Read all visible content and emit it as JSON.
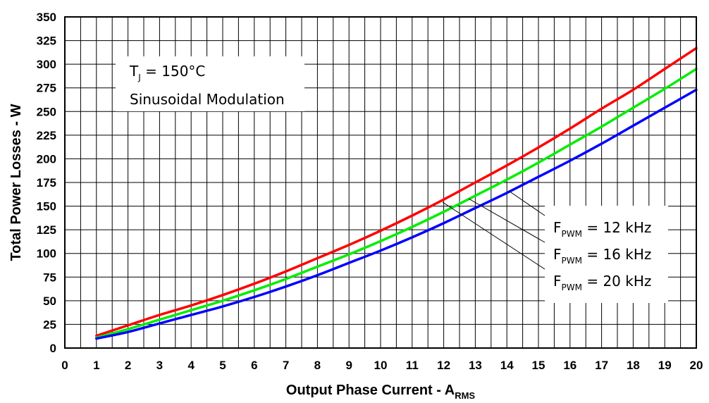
{
  "chart_data": {
    "type": "line",
    "xlabel": "Output Phase Current - A",
    "xlabel_sub": "RMS",
    "ylabel": "Total Power Losses - W",
    "xlim": [
      0,
      20
    ],
    "ylim": [
      0,
      350
    ],
    "xticks": [
      "0",
      "1",
      "2",
      "3",
      "4",
      "5",
      "6",
      "7",
      "8",
      "9",
      "10",
      "11",
      "12",
      "13",
      "14",
      "15",
      "16",
      "17",
      "18",
      "19",
      "20"
    ],
    "yticks": [
      "0",
      "25",
      "50",
      "75",
      "100",
      "125",
      "150",
      "175",
      "200",
      "225",
      "250",
      "275",
      "300",
      "325",
      "350"
    ],
    "grid": true,
    "x": [
      1,
      2,
      3,
      4,
      5,
      6,
      7,
      8,
      9,
      10,
      11,
      12,
      13,
      14,
      15,
      16,
      17,
      18,
      19,
      20
    ],
    "series": [
      {
        "name": "F_PWM = 12 kHz",
        "color": "#ff0000",
        "values": [
          13,
          24,
          35,
          45,
          56,
          68,
          81,
          95,
          109,
          124,
          140,
          157,
          175,
          193,
          212,
          232,
          253,
          273,
          295,
          317
        ]
      },
      {
        "name": "F_PWM = 16 kHz",
        "color": "#00ee00",
        "values": [
          11,
          20,
          30,
          40,
          50,
          61,
          73,
          86,
          99,
          113,
          128,
          144,
          161,
          178,
          196,
          215,
          234,
          254,
          274,
          295
        ]
      },
      {
        "name": "F_PWM = 20 kHz",
        "color": "#0000ff",
        "values": [
          10,
          17,
          26,
          35,
          44,
          54,
          65,
          77,
          90,
          103,
          117,
          132,
          148,
          164,
          181,
          198,
          216,
          235,
          254,
          273
        ]
      }
    ],
    "legend": {
      "placement": "right",
      "entries": [
        {
          "main": "F",
          "sub": "PWM",
          "rest": " = 12 kHz"
        },
        {
          "main": "F",
          "sub": "PWM",
          "rest": " = 16 kHz"
        },
        {
          "main": "F",
          "sub": "PWM",
          "rest": " = 20 kHz"
        }
      ]
    },
    "annotation": {
      "line1_main": "T",
      "line1_sub": "J",
      "line1_rest": " = 150°C",
      "line2": "Sinusoidal Modulation"
    }
  }
}
